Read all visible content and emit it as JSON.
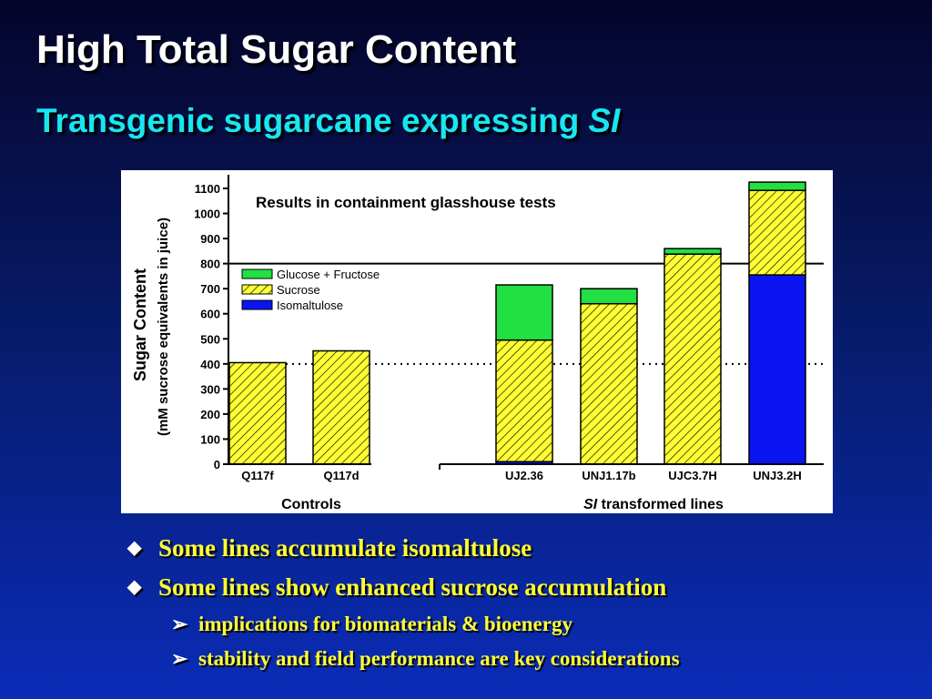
{
  "slide": {
    "title": "High Total Sugar Content",
    "subtitle_text": "Transgenic sugarcane expressing",
    "subtitle_gene": "SI"
  },
  "chart_data": {
    "type": "bar",
    "stacked": true,
    "annotation": "Results in containment glasshouse tests",
    "ylabel_line1": "Sugar Content",
    "ylabel_line2": "(mM sucrose equivalents in juice)",
    "ylim": [
      0,
      1100
    ],
    "yticks": [
      0,
      100,
      200,
      300,
      400,
      500,
      600,
      700,
      800,
      900,
      1000,
      1100
    ],
    "categories": [
      "Q117f",
      "Q117d",
      "UJ2.36",
      "UNJ1.17b",
      "UJC3.7H",
      "UNJ3.2H"
    ],
    "series": [
      {
        "name": "Isomaltulose",
        "color": "#0a14f0",
        "values": [
          0,
          0,
          10,
          0,
          0,
          755
        ]
      },
      {
        "name": "Sucrose",
        "color": "#ffff33",
        "pattern": "hatch",
        "values": [
          405,
          452,
          485,
          640,
          838,
          337
        ]
      },
      {
        "name": "Glucose + Fructose",
        "color": "#22e042",
        "values": [
          0,
          0,
          220,
          60,
          22,
          33
        ]
      }
    ],
    "legend_position": "top-left",
    "reference_lines": [
      {
        "value": 800,
        "style": "solid"
      },
      {
        "value": 400,
        "style": "dotted"
      }
    ],
    "group_labels": [
      {
        "label": "Controls",
        "categories": [
          0,
          1
        ]
      },
      {
        "label_italic": "SI",
        "label": "transformed lines",
        "categories": [
          2,
          3,
          4,
          5
        ]
      }
    ]
  },
  "bullets": [
    {
      "level": 1,
      "text": "Some lines accumulate isomaltulose"
    },
    {
      "level": 1,
      "text": "Some lines show enhanced sucrose accumulation"
    },
    {
      "level": 2,
      "text": "implications for biomaterials & bioenergy"
    },
    {
      "level": 2,
      "text": "stability and field performance are key considerations"
    }
  ]
}
